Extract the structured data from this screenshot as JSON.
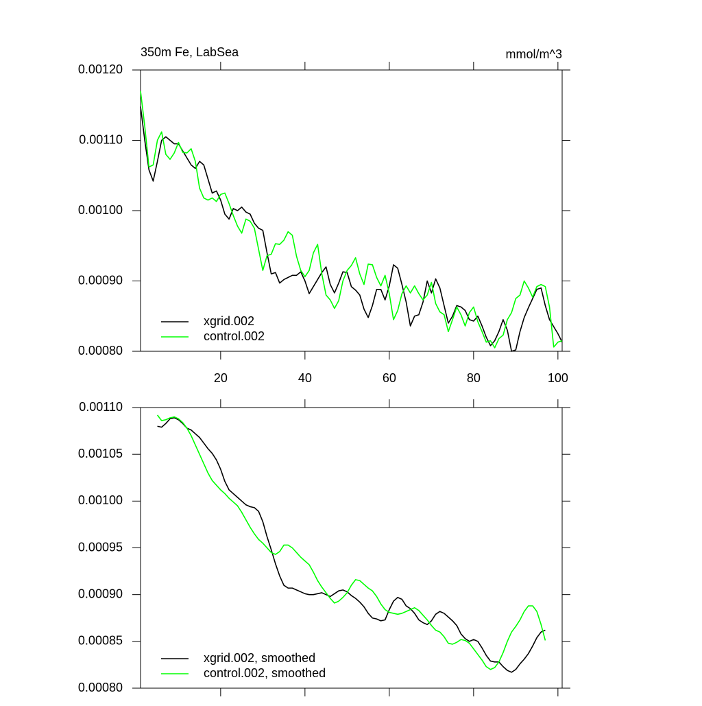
{
  "chart_data": [
    {
      "type": "line",
      "title": "350m Fe, LabSea",
      "units": "mmol/m^3",
      "x": [
        1,
        2,
        3,
        4,
        5,
        6,
        7,
        8,
        9,
        10,
        11,
        12,
        13,
        14,
        15,
        16,
        17,
        18,
        19,
        20,
        21,
        22,
        23,
        24,
        25,
        26,
        27,
        28,
        29,
        30,
        31,
        32,
        33,
        34,
        35,
        36,
        37,
        38,
        39,
        40,
        41,
        42,
        43,
        44,
        45,
        46,
        47,
        48,
        49,
        50,
        51,
        52,
        53,
        54,
        55,
        56,
        57,
        58,
        59,
        60,
        61,
        62,
        63,
        64,
        65,
        66,
        67,
        68,
        69,
        70,
        71,
        72,
        73,
        74,
        75,
        76,
        77,
        78,
        79,
        80,
        81,
        82,
        83,
        84,
        85,
        86,
        87,
        88,
        89,
        90,
        91,
        92,
        93,
        94,
        95,
        96,
        97,
        98,
        99,
        100,
        101
      ],
      "series": [
        {
          "name": "xgrid.002",
          "color": "#000000",
          "values": [
            0.001148,
            0.0011,
            0.001058,
            0.001042,
            0.00107,
            0.0011,
            0.001105,
            0.0011,
            0.001095,
            0.001095,
            0.001085,
            0.001075,
            0.001065,
            0.00106,
            0.00107,
            0.001065,
            0.001045,
            0.001025,
            0.001028,
            0.001015,
            0.000995,
            0.000988,
            0.001003,
            0.001,
            0.001005,
            0.000998,
            0.000995,
            0.000982,
            0.000975,
            0.000972,
            0.00094,
            0.00091,
            0.000912,
            0.000897,
            0.000902,
            0.000905,
            0.000908,
            0.000908,
            0.000913,
            0.0009,
            0.000882,
            0.000892,
            0.000902,
            0.000912,
            0.00092,
            0.000895,
            0.000883,
            0.000897,
            0.000913,
            0.000912,
            0.000892,
            0.000887,
            0.00088,
            0.00086,
            0.000848,
            0.000865,
            0.000888,
            0.000888,
            0.000873,
            0.000893,
            0.000923,
            0.000918,
            0.000895,
            0.00087,
            0.000836,
            0.00085,
            0.000852,
            0.00087,
            0.0009,
            0.000883,
            0.000903,
            0.00089,
            0.000865,
            0.00084,
            0.00085,
            0.000865,
            0.000863,
            0.000858,
            0.000845,
            0.000843,
            0.00085,
            0.000836,
            0.00082,
            0.000808,
            0.000815,
            0.000828,
            0.000845,
            0.00083,
            0.0008,
            0.000802,
            0.000828,
            0.000848,
            0.000862,
            0.000875,
            0.000888,
            0.00089,
            0.000865,
            0.000845,
            0.000835,
            0.000825,
            0.000813
          ]
        },
        {
          "name": "control.002",
          "color": "#00ff00",
          "values": [
            0.00117,
            0.00112,
            0.001062,
            0.001065,
            0.0011,
            0.001112,
            0.00108,
            0.001073,
            0.001082,
            0.001097,
            0.001083,
            0.001082,
            0.001088,
            0.00107,
            0.001032,
            0.001018,
            0.001015,
            0.001018,
            0.001013,
            0.001023,
            0.001025,
            0.00101,
            0.000993,
            0.000978,
            0.000968,
            0.000988,
            0.000985,
            0.000975,
            0.000945,
            0.000915,
            0.000936,
            0.000938,
            0.000953,
            0.000952,
            0.000958,
            0.00097,
            0.000965,
            0.000935,
            0.000915,
            0.000906,
            0.000915,
            0.00094,
            0.000952,
            0.00091,
            0.00088,
            0.000873,
            0.000861,
            0.000872,
            0.0009,
            0.000915,
            0.000922,
            0.000933,
            0.00091,
            0.000895,
            0.000924,
            0.000923,
            0.000905,
            0.000893,
            0.000908,
            0.000882,
            0.000845,
            0.000858,
            0.000882,
            0.000893,
            0.000883,
            0.000893,
            0.000882,
            0.000873,
            0.00088,
            0.000898,
            0.000868,
            0.000856,
            0.000852,
            0.000828,
            0.000845,
            0.000863,
            0.000852,
            0.000836,
            0.000855,
            0.000863,
            0.000842,
            0.000828,
            0.000813,
            0.000815,
            0.000805,
            0.000818,
            0.000823,
            0.000845,
            0.000855,
            0.000875,
            0.00088,
            0.0009,
            0.00089,
            0.000877,
            0.000892,
            0.000895,
            0.000892,
            0.000863,
            0.000806,
            0.000813,
            0.000815
          ]
        }
      ],
      "xlim": [
        1,
        101
      ],
      "xticks": [
        20,
        40,
        60,
        80,
        100
      ],
      "xtick_labels": true,
      "ylim": [
        0.0008,
        0.0012
      ],
      "yticks": [
        {
          "value": 0.0008,
          "label": "0.00080"
        },
        {
          "value": 0.0009,
          "label": "0.00090"
        },
        {
          "value": 0.001,
          "label": "0.00100"
        },
        {
          "value": 0.0011,
          "label": "0.00110"
        },
        {
          "value": 0.0012,
          "label": "0.00120"
        }
      ],
      "legend": "lower left"
    },
    {
      "type": "line",
      "x": [
        5,
        6,
        7,
        8,
        9,
        10,
        11,
        12,
        13,
        14,
        15,
        16,
        17,
        18,
        19,
        20,
        21,
        22,
        23,
        24,
        25,
        26,
        27,
        28,
        29,
        30,
        31,
        32,
        33,
        34,
        35,
        36,
        37,
        38,
        39,
        40,
        41,
        42,
        43,
        44,
        45,
        46,
        47,
        48,
        49,
        50,
        51,
        52,
        53,
        54,
        55,
        56,
        57,
        58,
        59,
        60,
        61,
        62,
        63,
        64,
        65,
        66,
        67,
        68,
        69,
        70,
        71,
        72,
        73,
        74,
        75,
        76,
        77,
        78,
        79,
        80,
        81,
        82,
        83,
        84,
        85,
        86,
        87,
        88,
        89,
        90,
        91,
        92,
        93,
        94,
        95,
        96,
        97
      ],
      "series": [
        {
          "name": "xgrid.002, smoothed",
          "color": "#000000",
          "values": [
            0.00108,
            0.001079,
            0.001083,
            0.001088,
            0.001089,
            0.001087,
            0.001083,
            0.001078,
            0.001076,
            0.001072,
            0.001068,
            0.001062,
            0.001056,
            0.001051,
            0.001044,
            0.001034,
            0.001021,
            0.001012,
            0.001008,
            0.001004,
            0.001,
            0.000996,
            0.000994,
            0.000993,
            0.000989,
            0.000978,
            0.000962,
            0.000948,
            0.000933,
            0.00092,
            0.00091,
            0.000907,
            0.000907,
            0.000905,
            0.000903,
            0.000901,
            0.0009,
            0.0009,
            0.000901,
            0.000902,
            0.0009,
            0.000898,
            0.000901,
            0.000904,
            0.000905,
            0.000903,
            0.000899,
            0.000896,
            0.000892,
            0.000887,
            0.00088,
            0.000875,
            0.000874,
            0.000872,
            0.000873,
            0.000884,
            0.000893,
            0.000897,
            0.000895,
            0.000888,
            0.000885,
            0.00088,
            0.000873,
            0.00087,
            0.000868,
            0.000872,
            0.000879,
            0.000882,
            0.00088,
            0.000876,
            0.000872,
            0.000867,
            0.000858,
            0.000853,
            0.00085,
            0.000852,
            0.00085,
            0.000843,
            0.000835,
            0.000829,
            0.000828,
            0.000828,
            0.000823,
            0.000819,
            0.000817,
            0.00082,
            0.000826,
            0.000831,
            0.000837,
            0.000845,
            0.000854,
            0.00086,
            0.000862
          ]
        },
        {
          "name": "control.002, smoothed",
          "color": "#00ff00",
          "values": [
            0.001092,
            0.001086,
            0.001087,
            0.001089,
            0.00109,
            0.001088,
            0.001084,
            0.001078,
            0.00107,
            0.00106,
            0.00105,
            0.00104,
            0.00103,
            0.001022,
            0.001017,
            0.001012,
            0.001008,
            0.001003,
            0.000999,
            0.000995,
            0.000988,
            0.00098,
            0.000972,
            0.000965,
            0.000959,
            0.000955,
            0.00095,
            0.000945,
            0.000943,
            0.000946,
            0.000953,
            0.000953,
            0.00095,
            0.000945,
            0.00094,
            0.000936,
            0.000932,
            0.000924,
            0.000915,
            0.000908,
            0.000902,
            0.000896,
            0.000891,
            0.000893,
            0.000897,
            0.000902,
            0.00091,
            0.000916,
            0.000915,
            0.000911,
            0.000907,
            0.000904,
            0.000898,
            0.00089,
            0.000884,
            0.000881,
            0.00088,
            0.000879,
            0.00088,
            0.000882,
            0.000884,
            0.000886,
            0.000883,
            0.000878,
            0.000873,
            0.000867,
            0.000862,
            0.00086,
            0.000855,
            0.000848,
            0.000847,
            0.000849,
            0.000852,
            0.000851,
            0.000848,
            0.000842,
            0.000836,
            0.00083,
            0.000823,
            0.00082,
            0.000822,
            0.000828,
            0.000838,
            0.00085,
            0.00086,
            0.000866,
            0.000873,
            0.000882,
            0.000888,
            0.000888,
            0.000882,
            0.000868,
            0.000851
          ]
        }
      ],
      "xlim": [
        1,
        101
      ],
      "xticks": [
        20,
        40,
        60,
        80,
        100
      ],
      "xtick_labels": false,
      "ylim": [
        0.0008,
        0.0011
      ],
      "yticks": [
        {
          "value": 0.0008,
          "label": "0.00080"
        },
        {
          "value": 0.00085,
          "label": "0.00085"
        },
        {
          "value": 0.0009,
          "label": "0.00090"
        },
        {
          "value": 0.00095,
          "label": "0.00095"
        },
        {
          "value": 0.001,
          "label": "0.00100"
        },
        {
          "value": 0.00105,
          "label": "0.00105"
        },
        {
          "value": 0.0011,
          "label": "0.00110"
        }
      ],
      "legend": "lower left"
    }
  ]
}
